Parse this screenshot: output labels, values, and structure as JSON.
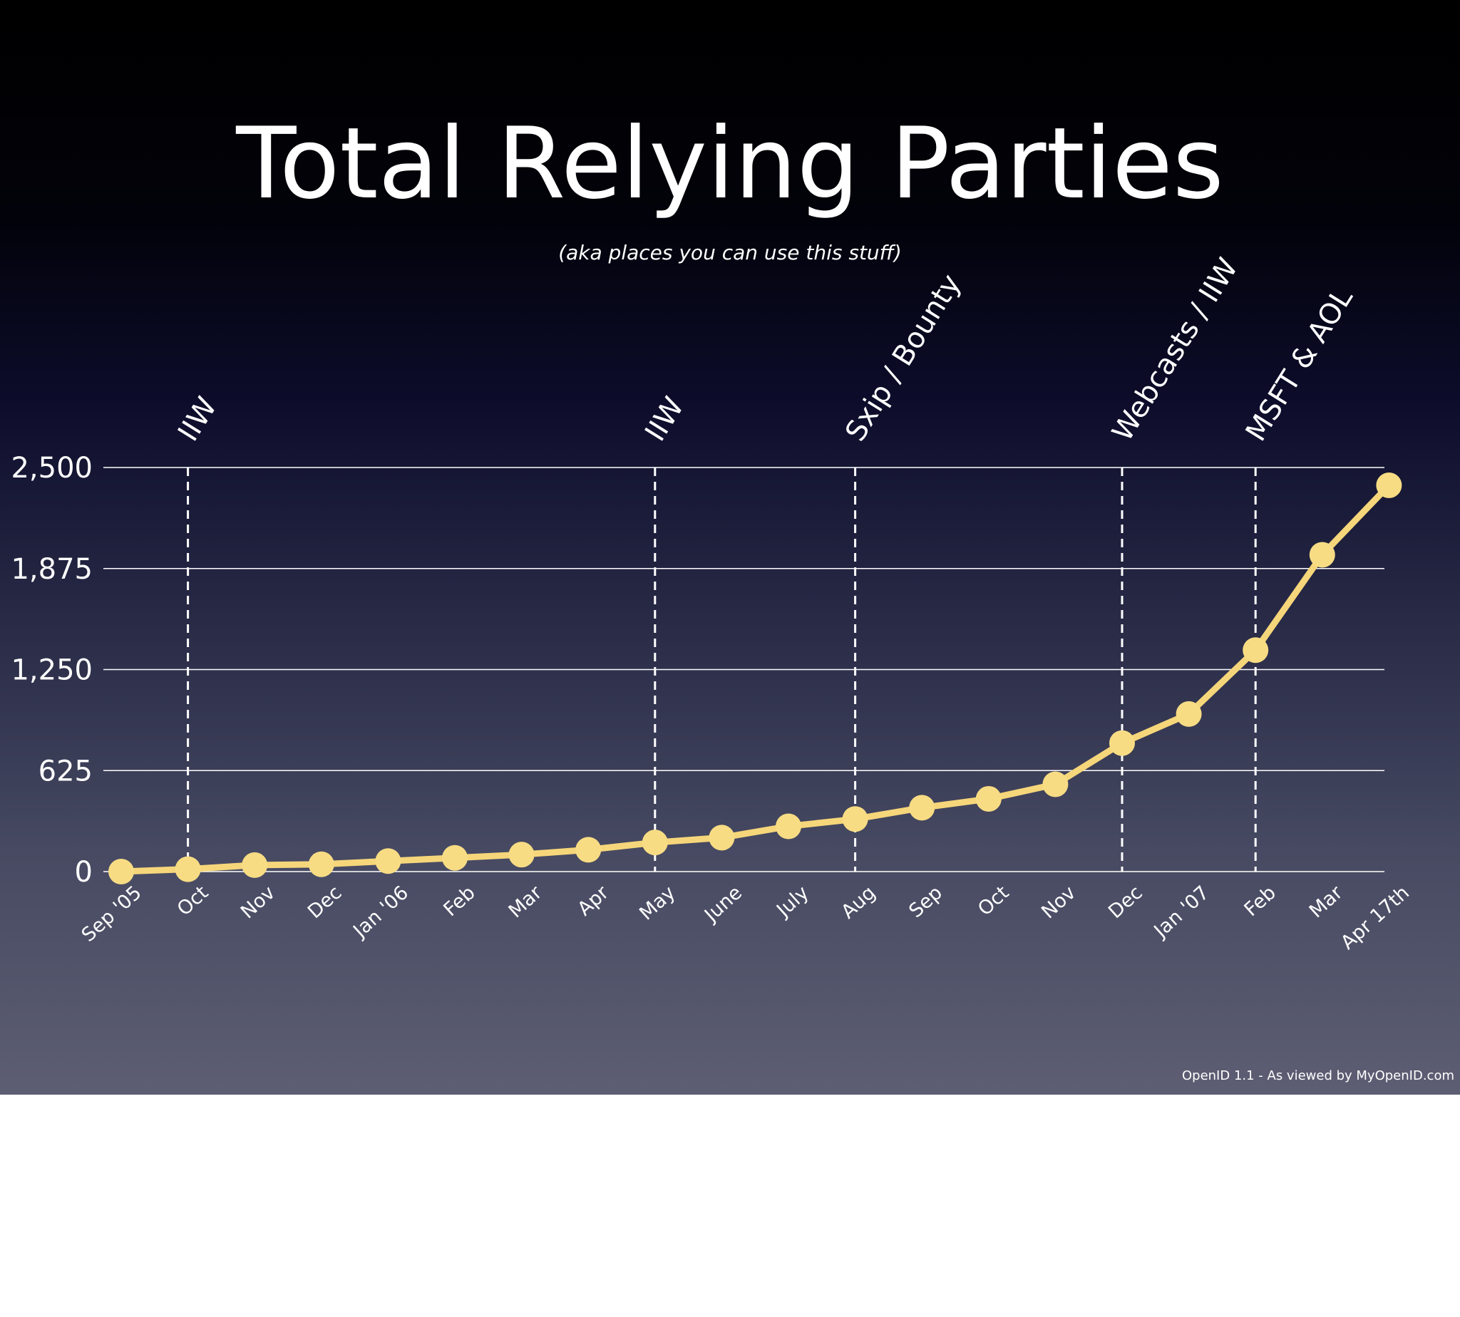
{
  "slide": {
    "title": "Total Relying Parties",
    "subtitle": "(aka places you can use this stuff)",
    "footer": "OpenID 1.1 - As viewed by MyOpenID.com"
  },
  "colors": {
    "line": "#f6d67a",
    "marker": "#f8dc84",
    "grid": "#ffffff",
    "text": "#ffffff"
  },
  "chart_data": {
    "type": "line",
    "title": "Total Relying Parties",
    "subtitle": "(aka places you can use this stuff)",
    "xlabel": "",
    "ylabel": "",
    "categories": [
      "Sep '05",
      "Oct",
      "Nov",
      "Dec",
      "Jan '06",
      "Feb",
      "Mar",
      "Apr",
      "May",
      "June",
      "July",
      "Aug",
      "Sep",
      "Oct",
      "Nov",
      "Dec",
      "Jan '07",
      "Feb",
      "Mar",
      "Apr 17th"
    ],
    "values": [
      0,
      15,
      40,
      45,
      65,
      85,
      105,
      135,
      180,
      210,
      280,
      325,
      395,
      450,
      540,
      795,
      975,
      1370,
      1960,
      2390
    ],
    "ylim": [
      0,
      2500
    ],
    "yticks": [
      0,
      625,
      1250,
      1875,
      2500
    ],
    "ytick_labels": [
      "0",
      "625",
      "1,250",
      "1,875",
      "2,500"
    ],
    "grid": true,
    "legend": "none",
    "annotations": [
      {
        "label": "IIW",
        "category": "Oct"
      },
      {
        "label": "IIW",
        "category": "May"
      },
      {
        "label": "Sxip / Bounty",
        "category": "Aug"
      },
      {
        "label": "Webcasts / IIW",
        "category": "Dec"
      },
      {
        "label": "MSFT & AOL",
        "category": "Feb"
      }
    ],
    "annotation_indices": [
      1,
      8,
      11,
      15,
      17
    ]
  }
}
